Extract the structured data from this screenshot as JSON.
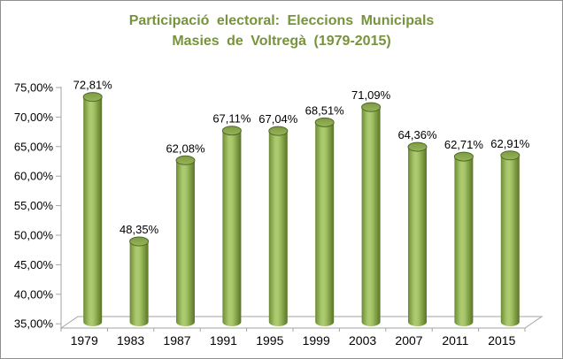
{
  "title": {
    "line1": "Participació electoral: Eleccions Municipals",
    "line2": "Masies de Voltregà (1979-2015)",
    "color": "#77933C"
  },
  "chart_data": {
    "type": "bar",
    "style": "3d-cylinder",
    "title": "Participació electoral: Eleccions Municipals Masies de Voltregà (1979-2015)",
    "categories": [
      "1979",
      "1983",
      "1987",
      "1991",
      "1995",
      "1999",
      "2003",
      "2007",
      "2011",
      "2015"
    ],
    "values": [
      72.81,
      48.35,
      62.08,
      67.11,
      67.04,
      68.51,
      71.09,
      64.36,
      62.71,
      62.91
    ],
    "data_labels": [
      "72,81%",
      "48,35%",
      "62,08%",
      "67,11%",
      "67,04%",
      "68,51%",
      "71,09%",
      "64,36%",
      "62,71%",
      "62,91%"
    ],
    "xlabel": "",
    "ylabel": "",
    "ylim": [
      35,
      75
    ],
    "ytick_step": 5,
    "ytick_labels": [
      "75,00%",
      "70,00%",
      "65,00%",
      "60,00%",
      "55,00%",
      "50,00%",
      "45,00%",
      "40,00%",
      "35,00%"
    ],
    "grid": false,
    "legend": false,
    "colors": {
      "bar_body_dark": "#5a7429",
      "bar_body_mid": "#84a449",
      "bar_body_light": "#aecb72",
      "bar_top_fill": "#8aa74c",
      "bar_top_rim": "#4f682a",
      "axis": "#a3a3a3",
      "label": "#000000",
      "background": "#ffffff",
      "frame_border": "#8f8f8f"
    }
  }
}
